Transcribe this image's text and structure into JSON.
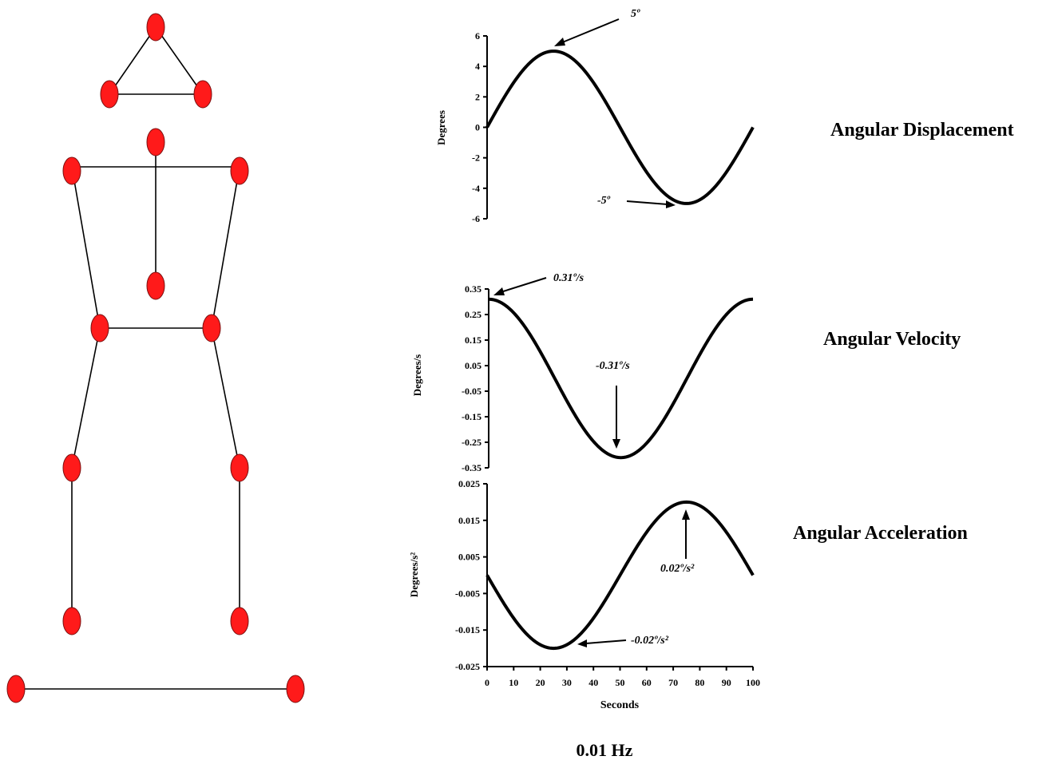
{
  "skeleton": {
    "markers": [
      "head-top",
      "head-left",
      "head-right",
      "c7",
      "l-shoulder",
      "r-shoulder",
      "t10",
      "l-hip",
      "r-hip",
      "l-knee",
      "r-knee",
      "l-ankle",
      "r-ankle",
      "l-platform",
      "r-platform"
    ]
  },
  "colors": {
    "marker": "#ff1a1a",
    "line": "#000000"
  },
  "titles": {
    "displacement": "Angular Displacement",
    "velocity": "Angular Velocity",
    "acceleration": "Angular Acceleration"
  },
  "footer": "0.01 Hz",
  "chart_data": [
    {
      "type": "line",
      "ylabel": "Degrees",
      "ylim": [
        -6,
        6
      ],
      "yticks": [
        "6",
        "4",
        "2",
        "0",
        "-2",
        "-4",
        "-6"
      ],
      "series": [
        {
          "x_range": [
            0,
            100
          ],
          "function": "5*sin(2*pi*0.01*t)",
          "peak": 5,
          "trough": -5
        }
      ],
      "annotations": [
        {
          "label": "5º",
          "x": 25,
          "y": 5
        },
        {
          "label": "-5º",
          "x": 75,
          "y": -5
        }
      ]
    },
    {
      "type": "line",
      "ylabel": "Degrees/s",
      "ylim": [
        -0.35,
        0.35
      ],
      "yticks": [
        "0.35",
        "0.25",
        "0.15",
        "0.05",
        "-0.05",
        "-0.15",
        "-0.25",
        "-0.35"
      ],
      "series": [
        {
          "x_range": [
            0,
            100
          ],
          "function": "0.31*cos(2*pi*0.01*t)",
          "peak": 0.31,
          "trough": -0.31
        }
      ],
      "annotations": [
        {
          "label": "0.31º/s",
          "x": 0,
          "y": 0.31
        },
        {
          "label": "-0.31º/s",
          "x": 50,
          "y": -0.31
        }
      ]
    },
    {
      "type": "line",
      "ylabel": "Degrees/s²",
      "xlabel": "Seconds",
      "xlim": [
        0,
        100
      ],
      "xticks": [
        "0",
        "10",
        "20",
        "30",
        "40",
        "50",
        "60",
        "70",
        "80",
        "90",
        "100"
      ],
      "ylim": [
        -0.025,
        0.025
      ],
      "yticks": [
        "0.025",
        "0.015",
        "0.005",
        "-0.005",
        "-0.015",
        "-0.025"
      ],
      "series": [
        {
          "x_range": [
            0,
            100
          ],
          "function": "-0.02*sin(2*pi*0.01*t)",
          "peak": 0.02,
          "trough": -0.02
        }
      ],
      "annotations": [
        {
          "label": "0.02º/s²",
          "x": 75,
          "y": 0.02
        },
        {
          "label": "-0.02º/s²",
          "x": 25,
          "y": -0.02
        }
      ]
    }
  ]
}
